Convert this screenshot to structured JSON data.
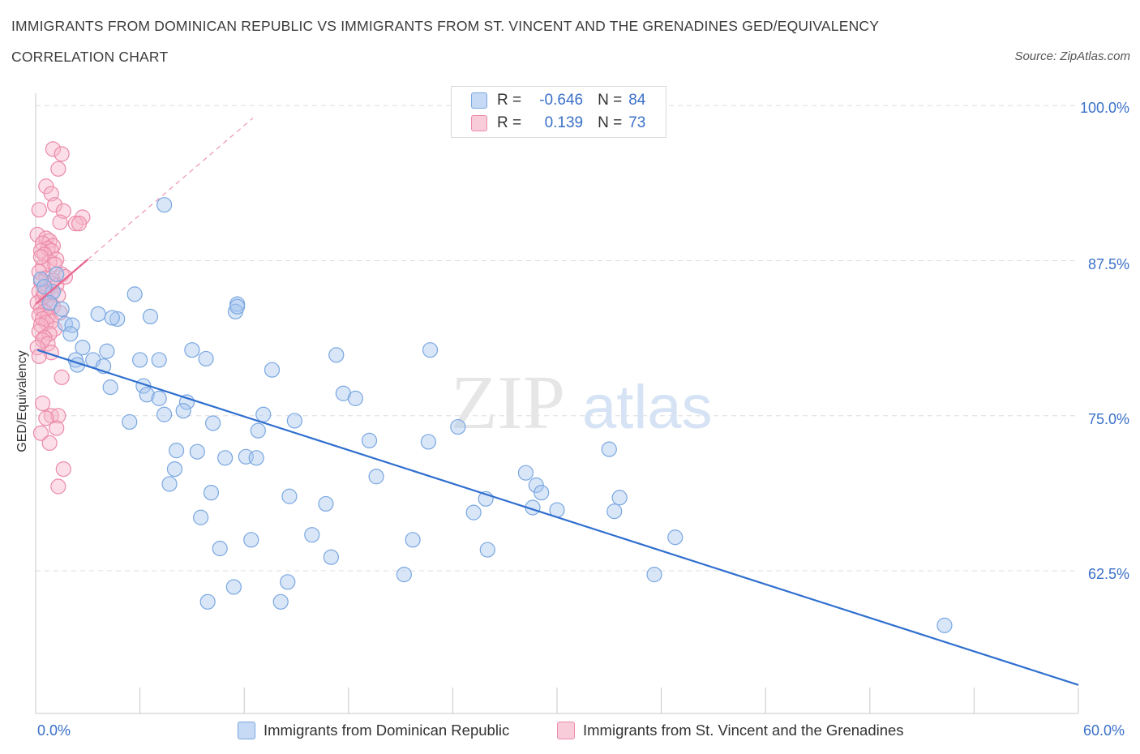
{
  "header": {
    "title_line1": "IMMIGRANTS FROM DOMINICAN REPUBLIC VS IMMIGRANTS FROM ST. VINCENT AND THE GRENADINES GED/EQUIVALENCY",
    "title_line2": "CORRELATION CHART",
    "source": "Source: ZipAtlas.com"
  },
  "legend": {
    "rows": [
      {
        "r_label": "R =",
        "r_value": "-0.646",
        "n_label": "N =",
        "n_value": "84"
      },
      {
        "r_label": "R =",
        "r_value": "0.139",
        "n_label": "N =",
        "n_value": "73"
      }
    ]
  },
  "watermark": {
    "zip": "ZIP",
    "atlas": "atlas"
  },
  "colors": {
    "blue_fill": "#a9c7ef",
    "blue_stroke": "#7aa7e0",
    "blue_line": "#2f6fcf",
    "pink_fill": "#f6b5c9",
    "pink_stroke": "#ec8aa9",
    "pink_line": "#e8668f",
    "tick_text": "#3a70c8",
    "grid": "#dddddd"
  },
  "chart_data": {
    "type": "scatter",
    "title": "IMMIGRANTS FROM DOMINICAN REPUBLIC VS IMMIGRANTS FROM ST. VINCENT AND THE GRENADINES GED/EQUIVALENCY CORRELATION CHART",
    "xlabel": "",
    "ylabel": "GED/Equivalency",
    "xlim": [
      0,
      60
    ],
    "ylim": [
      51,
      101
    ],
    "x_tick_labels": [
      "0.0%",
      "60.0%"
    ],
    "y_ticks": [
      62.5,
      75.0,
      87.5,
      100.0
    ],
    "y_tick_labels": [
      "62.5%",
      "75.0%",
      "87.5%",
      "100.0%"
    ],
    "grid": true,
    "legend_position": "bottom",
    "series": [
      {
        "name": "Immigrants from Dominican Republic",
        "color": "#a9c7ef",
        "trend": {
          "x": [
            0.1,
            60.0
          ],
          "y": [
            80.3,
            53.3
          ]
        },
        "points": [
          [
            7.4,
            92.0
          ],
          [
            0.3,
            86.0
          ],
          [
            1.0,
            85.0
          ],
          [
            5.7,
            84.8
          ],
          [
            0.8,
            84.1
          ],
          [
            11.6,
            84.0
          ],
          [
            1.5,
            83.6
          ],
          [
            11.5,
            83.4
          ],
          [
            3.6,
            83.2
          ],
          [
            6.6,
            83.0
          ],
          [
            4.7,
            82.8
          ],
          [
            1.7,
            82.4
          ],
          [
            2.1,
            82.3
          ],
          [
            2.7,
            80.5
          ],
          [
            4.1,
            80.2
          ],
          [
            9.0,
            80.3
          ],
          [
            22.7,
            80.3
          ],
          [
            17.3,
            79.9
          ],
          [
            2.3,
            79.5
          ],
          [
            3.3,
            79.5
          ],
          [
            6.0,
            79.5
          ],
          [
            7.1,
            79.5
          ],
          [
            9.8,
            79.6
          ],
          [
            3.9,
            79.0
          ],
          [
            2.4,
            79.1
          ],
          [
            13.6,
            78.7
          ],
          [
            4.3,
            77.3
          ],
          [
            6.2,
            77.4
          ],
          [
            17.7,
            76.8
          ],
          [
            18.4,
            76.4
          ],
          [
            6.4,
            76.7
          ],
          [
            7.1,
            76.4
          ],
          [
            8.7,
            76.1
          ],
          [
            8.5,
            75.4
          ],
          [
            7.4,
            75.1
          ],
          [
            13.1,
            75.1
          ],
          [
            14.9,
            74.6
          ],
          [
            5.4,
            74.5
          ],
          [
            10.2,
            74.4
          ],
          [
            12.8,
            73.8
          ],
          [
            19.2,
            73.0
          ],
          [
            24.3,
            74.1
          ],
          [
            22.6,
            72.9
          ],
          [
            8.1,
            72.2
          ],
          [
            9.3,
            72.1
          ],
          [
            33.0,
            72.3
          ],
          [
            10.9,
            71.6
          ],
          [
            12.1,
            71.7
          ],
          [
            12.7,
            71.6
          ],
          [
            8.0,
            70.7
          ],
          [
            19.6,
            70.1
          ],
          [
            28.2,
            70.4
          ],
          [
            28.8,
            69.4
          ],
          [
            7.7,
            69.5
          ],
          [
            10.1,
            68.8
          ],
          [
            14.6,
            68.5
          ],
          [
            16.7,
            67.9
          ],
          [
            25.9,
            68.3
          ],
          [
            29.1,
            68.8
          ],
          [
            33.6,
            68.4
          ],
          [
            9.5,
            66.8
          ],
          [
            25.2,
            67.2
          ],
          [
            28.6,
            67.6
          ],
          [
            30.0,
            67.4
          ],
          [
            33.3,
            67.3
          ],
          [
            15.9,
            65.4
          ],
          [
            12.4,
            65.0
          ],
          [
            21.7,
            65.0
          ],
          [
            36.8,
            65.2
          ],
          [
            10.6,
            64.3
          ],
          [
            26.0,
            64.2
          ],
          [
            17.0,
            63.6
          ],
          [
            21.2,
            62.2
          ],
          [
            35.6,
            62.2
          ],
          [
            14.5,
            61.6
          ],
          [
            11.4,
            61.2
          ],
          [
            9.9,
            60.0
          ],
          [
            14.1,
            60.0
          ],
          [
            52.3,
            58.1
          ],
          [
            4.4,
            82.9
          ],
          [
            11.6,
            83.8
          ],
          [
            2.0,
            81.6
          ],
          [
            1.2,
            86.4
          ],
          [
            0.5,
            85.4
          ]
        ]
      },
      {
        "name": "Immigrants from St. Vincent and the Grenadines",
        "color": "#f6b5c9",
        "trend": {
          "x": [
            0.0,
            3.0
          ],
          "y": [
            84.0,
            87.6
          ]
        },
        "points": [
          [
            1.0,
            96.5
          ],
          [
            1.5,
            96.1
          ],
          [
            1.3,
            94.9
          ],
          [
            0.6,
            93.5
          ],
          [
            0.9,
            92.9
          ],
          [
            1.1,
            92.0
          ],
          [
            0.2,
            91.6
          ],
          [
            1.6,
            91.5
          ],
          [
            2.7,
            91.0
          ],
          [
            1.4,
            90.6
          ],
          [
            2.3,
            90.5
          ],
          [
            2.5,
            90.5
          ],
          [
            0.1,
            89.6
          ],
          [
            0.6,
            89.3
          ],
          [
            0.8,
            89.1
          ],
          [
            0.4,
            88.9
          ],
          [
            1.0,
            88.7
          ],
          [
            0.7,
            88.5
          ],
          [
            0.3,
            88.3
          ],
          [
            0.9,
            88.3
          ],
          [
            0.5,
            88.0
          ],
          [
            1.2,
            87.6
          ],
          [
            0.8,
            87.4
          ],
          [
            1.1,
            87.2
          ],
          [
            0.4,
            87.0
          ],
          [
            0.2,
            86.6
          ],
          [
            1.5,
            86.4
          ],
          [
            0.6,
            86.1
          ],
          [
            0.3,
            85.8
          ],
          [
            0.9,
            85.7
          ],
          [
            1.2,
            85.5
          ],
          [
            0.5,
            85.4
          ],
          [
            0.7,
            85.1
          ],
          [
            0.2,
            85.0
          ],
          [
            0.9,
            84.8
          ],
          [
            1.3,
            84.7
          ],
          [
            0.4,
            84.5
          ],
          [
            0.6,
            84.2
          ],
          [
            0.1,
            84.1
          ],
          [
            0.8,
            84.0
          ],
          [
            1.0,
            83.8
          ],
          [
            0.3,
            83.6
          ],
          [
            0.5,
            83.4
          ],
          [
            1.4,
            83.3
          ],
          [
            0.2,
            83.1
          ],
          [
            0.7,
            83.0
          ],
          [
            0.4,
            82.8
          ],
          [
            0.9,
            82.6
          ],
          [
            0.6,
            82.5
          ],
          [
            0.3,
            82.3
          ],
          [
            1.1,
            82.0
          ],
          [
            0.2,
            81.8
          ],
          [
            0.8,
            81.6
          ],
          [
            0.5,
            81.3
          ],
          [
            0.4,
            81.1
          ],
          [
            0.7,
            80.8
          ],
          [
            0.1,
            80.5
          ],
          [
            0.9,
            80.1
          ],
          [
            0.2,
            79.8
          ],
          [
            1.5,
            78.1
          ],
          [
            0.4,
            76.0
          ],
          [
            0.9,
            75.0
          ],
          [
            1.3,
            75.0
          ],
          [
            0.6,
            74.8
          ],
          [
            1.2,
            74.0
          ],
          [
            0.3,
            73.6
          ],
          [
            0.8,
            72.8
          ],
          [
            1.6,
            70.7
          ],
          [
            1.3,
            69.3
          ],
          [
            0.5,
            84.9
          ],
          [
            1.0,
            85.9
          ],
          [
            0.3,
            87.8
          ],
          [
            1.7,
            86.2
          ]
        ]
      }
    ]
  }
}
